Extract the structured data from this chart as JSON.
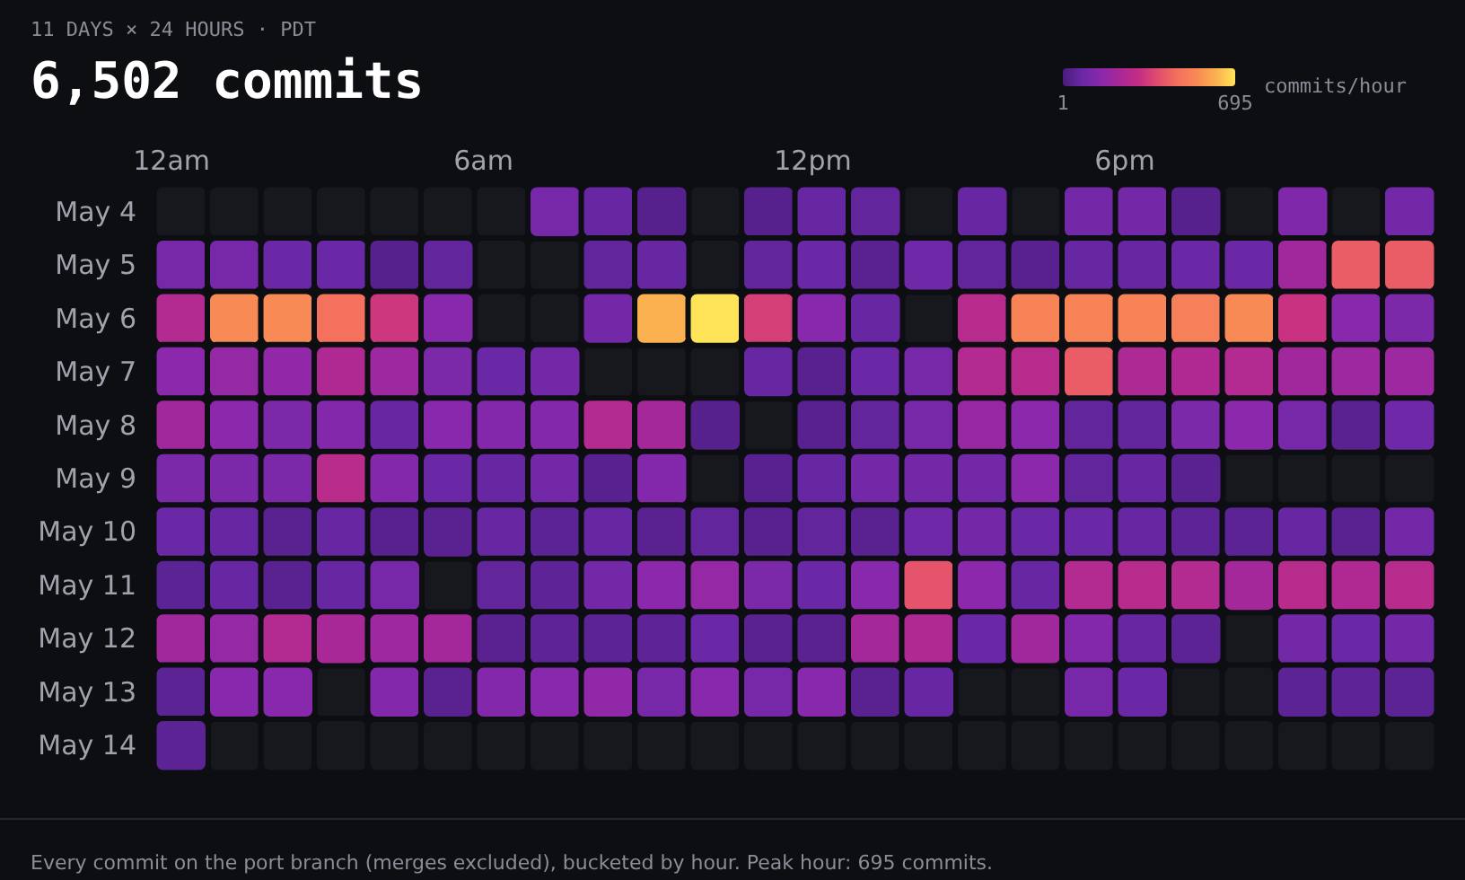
{
  "chart_data": {
    "type": "heatmap",
    "subtitle": "11 DAYS × 24 HOURS · PDT",
    "title": "6,502 commits",
    "categories": [
      "12am",
      null,
      null,
      null,
      null,
      null,
      "6am",
      null,
      null,
      null,
      null,
      null,
      "12pm",
      null,
      null,
      null,
      null,
      null,
      "6pm",
      null,
      null,
      null,
      null,
      null
    ],
    "y_categories": [
      "May 4",
      "May 5",
      "May 6",
      "May 7",
      "May 8",
      "May 9",
      "May 10",
      "May 11",
      "May 12",
      "May 13",
      "May 14"
    ],
    "cells": [
      [
        null,
        null,
        null,
        null,
        null,
        null,
        null,
        110,
        70,
        30,
        null,
        30,
        70,
        60,
        null,
        70,
        null,
        100,
        100,
        30,
        null,
        130,
        null,
        100
      ],
      [
        110,
        110,
        80,
        80,
        30,
        60,
        null,
        null,
        60,
        70,
        null,
        60,
        80,
        40,
        90,
        60,
        35,
        70,
        70,
        80,
        80,
        210,
        420,
        420
      ],
      [
        260,
        540,
        540,
        470,
        330,
        150,
        null,
        null,
        100,
        620,
        695,
        350,
        150,
        70,
        null,
        270,
        520,
        520,
        520,
        510,
        540,
        320,
        150,
        120
      ],
      [
        160,
        180,
        170,
        250,
        200,
        120,
        80,
        100,
        null,
        null,
        null,
        70,
        35,
        80,
        110,
        260,
        270,
        420,
        240,
        250,
        260,
        210,
        200,
        200
      ],
      [
        210,
        160,
        120,
        140,
        70,
        150,
        140,
        140,
        260,
        220,
        30,
        null,
        35,
        60,
        110,
        190,
        160,
        60,
        60,
        120,
        160,
        110,
        40,
        90
      ],
      [
        120,
        120,
        120,
        280,
        140,
        80,
        70,
        100,
        35,
        140,
        null,
        35,
        70,
        100,
        100,
        100,
        160,
        60,
        70,
        40,
        null,
        null,
        null,
        null
      ],
      [
        80,
        70,
        40,
        70,
        35,
        40,
        70,
        45,
        70,
        40,
        60,
        35,
        60,
        40,
        90,
        100,
        80,
        80,
        70,
        50,
        45,
        70,
        40,
        100
      ],
      [
        45,
        70,
        40,
        70,
        110,
        null,
        60,
        50,
        100,
        160,
        180,
        120,
        80,
        150,
        400,
        160,
        70,
        260,
        270,
        260,
        220,
        270,
        250,
        270
      ],
      [
        210,
        180,
        260,
        230,
        200,
        220,
        40,
        50,
        45,
        50,
        80,
        40,
        40,
        220,
        250,
        80,
        210,
        140,
        70,
        45,
        null,
        100,
        80,
        100
      ],
      [
        45,
        150,
        150,
        null,
        140,
        40,
        140,
        150,
        170,
        110,
        150,
        110,
        150,
        40,
        70,
        null,
        null,
        110,
        80,
        null,
        null,
        45,
        50,
        45
      ],
      [
        45,
        null,
        null,
        null,
        null,
        null,
        null,
        null,
        null,
        null,
        null,
        null,
        null,
        null,
        null,
        null,
        null,
        null,
        null,
        null,
        null,
        null,
        null,
        null
      ]
    ],
    "clim": [
      1,
      695
    ],
    "cticks": [
      1,
      695
    ],
    "clabel": "commits/hour",
    "annotations": [
      "Every commit on the port branch (merges excluded), bucketed by hour. Peak hour: 695 commits."
    ]
  }
}
